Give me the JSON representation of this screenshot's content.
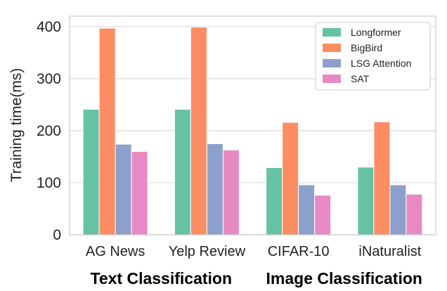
{
  "chart_data": {
    "type": "bar",
    "categories": [
      "AG News",
      "Yelp Review",
      "CIFAR-10",
      "iNaturalist"
    ],
    "group_labels": [
      "Text Classification",
      "Image Classification"
    ],
    "series": [
      {
        "name": "Longformer",
        "color": "#66c2a5",
        "values": [
          241,
          241,
          129,
          130
        ]
      },
      {
        "name": "BigBird",
        "color": "#fc8d62",
        "values": [
          397,
          399,
          216,
          217
        ]
      },
      {
        "name": "LSG Attention",
        "color": "#8da0cb",
        "values": [
          174,
          175,
          96,
          96
        ]
      },
      {
        "name": "SAT",
        "color": "#e78ac3",
        "values": [
          160,
          163,
          76,
          78
        ]
      }
    ],
    "xlabel": "",
    "ylabel": "Training time(ms)",
    "ylim": [
      0,
      420
    ],
    "yticks": [
      0,
      100,
      200,
      300,
      400
    ],
    "grid": "horizontal",
    "legend_position": "top-right"
  }
}
